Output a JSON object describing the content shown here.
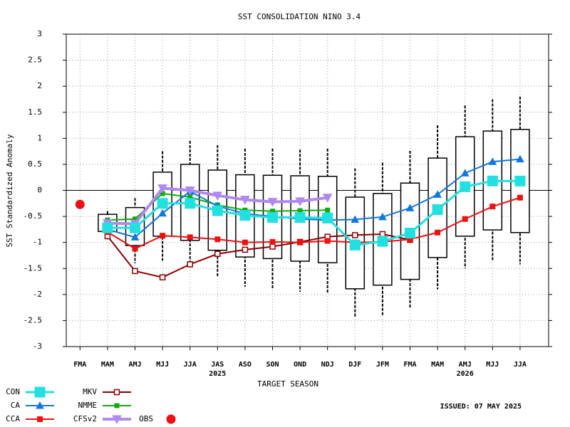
{
  "chart_data": {
    "type": "box_line",
    "title": "SST CONSOLIDATION NINO 3.4",
    "xlabel": "TARGET SEASON",
    "ylabel": "SST Standardized Anomaly",
    "issued": "ISSUED: 07 MAY 2025",
    "categories": [
      "FMA",
      "MAM",
      "AMJ",
      "MJJ",
      "JJA",
      "JAS",
      "ASO",
      "SON",
      "OND",
      "NDJ",
      "DJF",
      "JFM",
      "FMA",
      "MAM",
      "AMJ",
      "MJJ",
      "JJA"
    ],
    "category_years": [
      null,
      null,
      null,
      null,
      null,
      "2025",
      null,
      null,
      null,
      null,
      null,
      null,
      null,
      null,
      "2026",
      null,
      null
    ],
    "ylim": [
      -3,
      3
    ],
    "yticks": [
      -3,
      -2.5,
      -2,
      -1.5,
      -1,
      -0.5,
      0,
      0.5,
      1,
      1.5,
      2,
      2.5,
      3
    ],
    "grid": true,
    "box": {
      "high": [
        null,
        -0.4,
        -0.15,
        0.75,
        0.95,
        0.87,
        0.8,
        0.8,
        0.78,
        0.8,
        0.42,
        0.53,
        0.76,
        1.25,
        1.63,
        1.75,
        1.8
      ],
      "q3": [
        null,
        -0.46,
        -0.33,
        0.35,
        0.5,
        0.39,
        0.3,
        0.29,
        0.28,
        0.27,
        -0.13,
        -0.06,
        0.14,
        0.62,
        1.03,
        1.14,
        1.17
      ],
      "q1": [
        null,
        -0.79,
        -1.06,
        -0.88,
        -0.96,
        -1.15,
        -1.28,
        -1.31,
        -1.36,
        -1.39,
        -1.89,
        -1.82,
        -1.71,
        -1.29,
        -0.88,
        -0.76,
        -0.81
      ],
      "low": [
        null,
        -0.85,
        -1.4,
        -1.35,
        -1.4,
        -1.65,
        -1.85,
        -1.9,
        -1.95,
        -1.97,
        -2.45,
        -2.4,
        -2.27,
        -1.9,
        -1.5,
        -1.35,
        -1.42
      ]
    },
    "series": [
      {
        "name": "MKV",
        "color": "#8b0000",
        "marker": "hollow-square",
        "values": [
          null,
          -0.88,
          -1.55,
          -1.67,
          -1.42,
          -1.22,
          -1.14,
          -1.08,
          -0.99,
          -0.89,
          -0.86,
          -0.84,
          -0.95,
          null,
          null,
          null,
          null
        ]
      },
      {
        "name": "CCA",
        "color": "#ee1111",
        "marker": "square",
        "values": [
          null,
          -0.8,
          -1.12,
          -0.87,
          -0.9,
          -0.94,
          -1.0,
          -0.99,
          -1.0,
          -0.97,
          -1.0,
          -0.99,
          -0.94,
          -0.81,
          -0.55,
          -0.31,
          -0.14
        ]
      },
      {
        "name": "NMME",
        "color": "#11aa11",
        "marker": "small-square",
        "values": [
          null,
          -0.57,
          -0.55,
          -0.06,
          -0.13,
          -0.28,
          -0.38,
          -0.4,
          -0.39,
          -0.38,
          null,
          null,
          null,
          null,
          null,
          null,
          null
        ]
      },
      {
        "name": "CA",
        "color": "#1177dd",
        "marker": "triangle",
        "values": [
          null,
          -0.75,
          -0.9,
          -0.44,
          -0.02,
          -0.3,
          -0.45,
          -0.5,
          -0.55,
          -0.57,
          -0.56,
          -0.51,
          -0.34,
          -0.08,
          0.33,
          0.55,
          0.6
        ]
      },
      {
        "name": "CFSv2",
        "color": "#b088ee",
        "marker": "triangle-down",
        "values": [
          null,
          -0.63,
          -0.64,
          0.04,
          0.0,
          -0.1,
          -0.18,
          -0.22,
          -0.21,
          -0.14,
          null,
          null,
          null,
          null,
          null,
          null,
          null
        ]
      },
      {
        "name": "CON",
        "color": "#22e0e0",
        "marker": "big-square",
        "values": [
          null,
          -0.72,
          -0.72,
          -0.25,
          -0.25,
          -0.39,
          -0.48,
          -0.52,
          -0.52,
          -0.53,
          -1.05,
          -0.98,
          -0.82,
          -0.37,
          0.07,
          0.18,
          0.18
        ]
      },
      {
        "name": "OBS",
        "color": "#ee1111",
        "marker": "dot",
        "values": [
          -0.27,
          null,
          null,
          null,
          null,
          null,
          null,
          null,
          null,
          null,
          null,
          null,
          null,
          null,
          null,
          null,
          null
        ]
      }
    ]
  }
}
